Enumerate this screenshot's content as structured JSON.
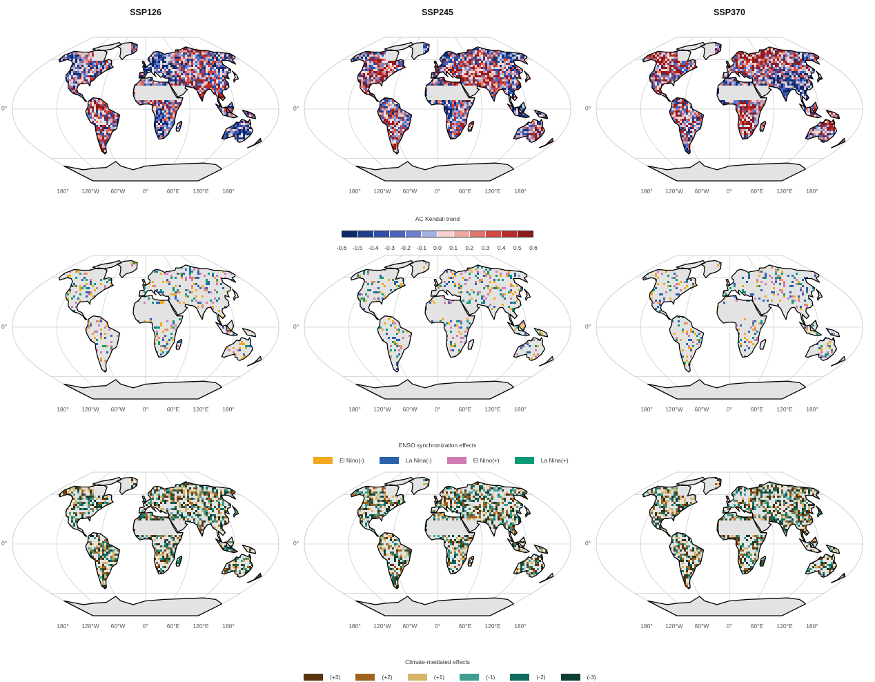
{
  "columns": [
    "SSP126",
    "SSP245",
    "SSP370"
  ],
  "longitude_labels": [
    "180°",
    "120°W",
    "60°W",
    "0°",
    "60°E",
    "120°E",
    "180°"
  ],
  "latitude_label": "0°",
  "rows": [
    {
      "id": "ac-kendall-trend",
      "palette": "trend"
    },
    {
      "id": "enso-synchronization",
      "palette": "enso"
    },
    {
      "id": "climate-mediated",
      "palette": "climate"
    }
  ],
  "legend_trend": {
    "title": "AC Kendall trend",
    "ticks": [
      "-0.6",
      "-0.5",
      "-0.4",
      "-0.3",
      "-0.2",
      "-0.1",
      "0.0",
      "0.1",
      "0.2",
      "0.3",
      "0.4",
      "0.5",
      "0.6"
    ],
    "colors": [
      "#0b2a6b",
      "#1f3e8c",
      "#2d4fa6",
      "#4a63bd",
      "#6e7fd0",
      "#a6b1e4",
      "#f6d3d0",
      "#ecaaa3",
      "#e0766d",
      "#d5473f",
      "#b92a2a",
      "#8f1a1d"
    ]
  },
  "legend_enso": {
    "title": "ENSO synchronization effects",
    "items": [
      {
        "label": "El Nino(-)",
        "color": "#f2a81d"
      },
      {
        "label": "La Nina(-)",
        "color": "#2a62ab"
      },
      {
        "label": "El Nino(+)",
        "color": "#cf7bb0"
      },
      {
        "label": "La Nina(+)",
        "color": "#0a9a75"
      }
    ]
  },
  "legend_climate": {
    "title": "Climate-mediated effects",
    "items": [
      {
        "label": "(+3)",
        "color": "#5a3410"
      },
      {
        "label": "(+2)",
        "color": "#a0631e"
      },
      {
        "label": "(+1)",
        "color": "#d7b466"
      },
      {
        "label": "(-1)",
        "color": "#3f9e8f"
      },
      {
        "label": "(-2)",
        "color": "#0f6e5f"
      },
      {
        "label": "(-3)",
        "color": "#0d3f35"
      }
    ]
  },
  "colors": {
    "land_fill": "#e3e3e3",
    "coastline": "#000000",
    "graticule": "#cfcfcf"
  }
}
